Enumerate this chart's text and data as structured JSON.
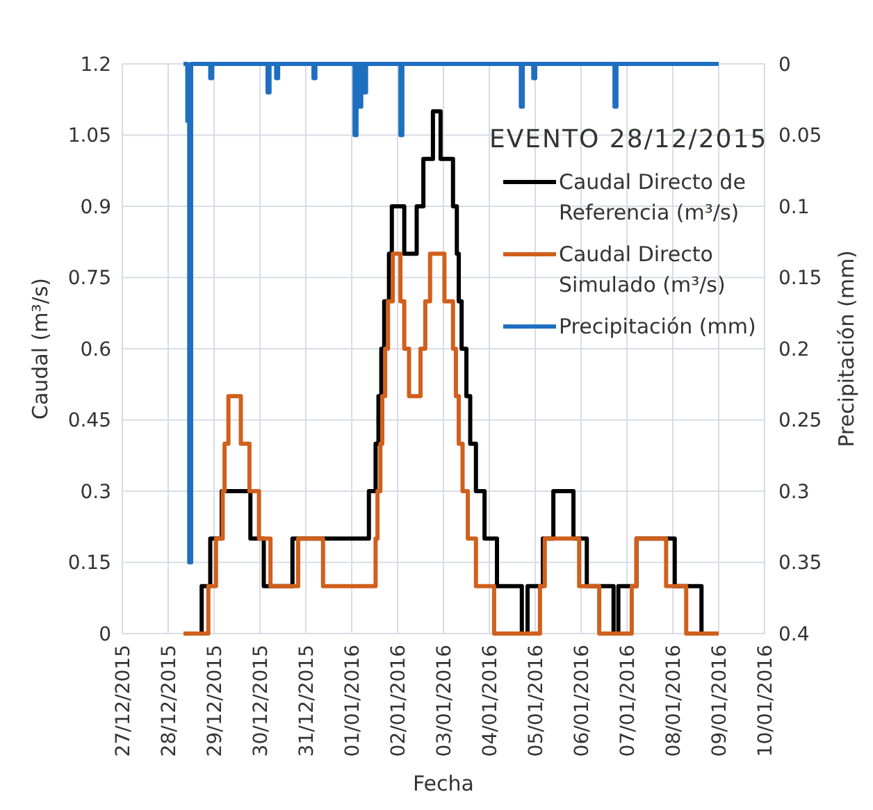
{
  "chart_data": {
    "type": "step",
    "xlabel": "Fecha",
    "ylabel": "Caudal (m³/s)",
    "y2label": "Precipitación (mm)",
    "legend_title": "EVENTO 28/12/2015",
    "legend": "top right",
    "grid": true,
    "xlim": [
      "2015-12-27",
      "2016-01-10"
    ],
    "xticks": [
      {
        "value": "2015-12-27",
        "label": "27/12/2015"
      },
      {
        "value": "2015-12-28",
        "label": "28/12/2015"
      },
      {
        "value": "2015-12-29",
        "label": "29/12/2015"
      },
      {
        "value": "2015-12-30",
        "label": "30/12/2015"
      },
      {
        "value": "2015-12-31",
        "label": "31/12/2015"
      },
      {
        "value": "2016-01-01",
        "label": "01/01/2016"
      },
      {
        "value": "2016-01-02",
        "label": "02/01/2016"
      },
      {
        "value": "2016-01-03",
        "label": "03/01/2016"
      },
      {
        "value": "2016-01-04",
        "label": "04/01/2016"
      },
      {
        "value": "2016-01-05",
        "label": "05/01/2016"
      },
      {
        "value": "2016-01-06",
        "label": "06/01/2016"
      },
      {
        "value": "2016-01-07",
        "label": "07/01/2016"
      },
      {
        "value": "2016-01-08",
        "label": "08/01/2016"
      },
      {
        "value": "2016-01-09",
        "label": "09/01/2016"
      },
      {
        "value": "2016-01-10",
        "label": "10/01/2016"
      }
    ],
    "ylim": [
      0,
      1.2
    ],
    "yticks": [
      0,
      0.15,
      0.3,
      0.45,
      0.6,
      0.75,
      0.9,
      1.05,
      1.2
    ],
    "y2lim": [
      0.4,
      0
    ],
    "y2ticks": [
      0,
      0.05,
      0.1,
      0.15,
      0.2,
      0.25,
      0.3,
      0.35,
      0.4
    ],
    "series": [
      {
        "name": "Caudal Directo de Referencia (m³/s)",
        "color": "#000000",
        "x": [
          "2015-12-28T08:00",
          "2015-12-28T17:30",
          "2015-12-28T22:00",
          "2015-12-29T04:00",
          "2015-12-29T19:00",
          "2015-12-30T02:00",
          "2015-12-30T17:00",
          "2016-01-01T09:00",
          "2016-01-01T12:30",
          "2016-01-01T14:00",
          "2016-01-01T15:30",
          "2016-01-01T17:00",
          "2016-01-01T19:30",
          "2016-01-01T21:00",
          "2016-01-02T03:30",
          "2016-01-02T10:00",
          "2016-01-02T13:30",
          "2016-01-02T18:30",
          "2016-01-02T22:30",
          "2016-01-03T05:00",
          "2016-01-03T07:00",
          "2016-01-03T08:00",
          "2016-01-03T09:30",
          "2016-01-03T12:00",
          "2016-01-03T14:00",
          "2016-01-03T17:00",
          "2016-01-03T21:30",
          "2016-01-04T04:00",
          "2016-01-04T17:00",
          "2016-01-04T20:00",
          "2016-01-05T04:00",
          "2016-01-05T09:30",
          "2016-01-05T20:00",
          "2016-01-06T03:00",
          "2016-01-06T17:00",
          "2016-01-06T19:30",
          "2016-01-07T05:00",
          "2016-01-08T01:00",
          "2016-01-08T15:00",
          "2016-01-09T00:00"
        ],
        "values": [
          0,
          0.1,
          0.2,
          0.3,
          0.2,
          0.1,
          0.2,
          0.3,
          0.4,
          0.5,
          0.6,
          0.7,
          0.8,
          0.9,
          0.8,
          0.9,
          1.0,
          1.1,
          1.0,
          0.9,
          0.8,
          0.7,
          0.6,
          0.5,
          0.4,
          0.3,
          0.2,
          0.1,
          0,
          0.1,
          0.2,
          0.3,
          0.2,
          0.1,
          0,
          0.1,
          0.2,
          0.1,
          0,
          0
        ]
      },
      {
        "name": "Caudal Directo Simulado (m³/s)",
        "color": "#d0601c",
        "x": [
          "2015-12-28T08:00",
          "2015-12-28T21:00",
          "2015-12-29T01:00",
          "2015-12-29T04:30",
          "2015-12-29T05:30",
          "2015-12-29T07:30",
          "2015-12-29T14:00",
          "2015-12-29T18:30",
          "2015-12-29T23:30",
          "2015-12-30T05:30",
          "2015-12-30T20:00",
          "2015-12-31T09:00",
          "2016-01-01T12:30",
          "2016-01-01T13:30",
          "2016-01-01T15:00",
          "2016-01-01T16:00",
          "2016-01-01T17:30",
          "2016-01-01T19:00",
          "2016-01-01T21:30",
          "2016-01-02T01:30",
          "2016-01-02T03:30",
          "2016-01-02T06:00",
          "2016-01-02T12:00",
          "2016-01-02T14:30",
          "2016-01-02T17:00",
          "2016-01-03T00:30",
          "2016-01-03T05:00",
          "2016-01-03T06:30",
          "2016-01-03T08:00",
          "2016-01-03T10:00",
          "2016-01-03T12:45",
          "2016-01-03T17:00",
          "2016-01-04T02:30",
          "2016-01-05T02:30",
          "2016-01-05T05:00",
          "2016-01-05T23:00",
          "2016-01-06T09:30",
          "2016-01-07T02:30",
          "2016-01-07T05:00",
          "2016-01-07T20:30",
          "2016-01-08T07:00",
          "2016-01-09T00:00"
        ],
        "values": [
          0,
          0.1,
          0.2,
          0.3,
          0.4,
          0.5,
          0.4,
          0.3,
          0.2,
          0.1,
          0.2,
          0.1,
          0.2,
          0.3,
          0.4,
          0.5,
          0.6,
          0.7,
          0.8,
          0.7,
          0.6,
          0.5,
          0.6,
          0.7,
          0.8,
          0.7,
          0.6,
          0.5,
          0.4,
          0.3,
          0.2,
          0.1,
          0,
          0.1,
          0.2,
          0.1,
          0,
          0.1,
          0.2,
          0.1,
          0,
          0
        ]
      },
      {
        "name": "Precipitación (mm)",
        "color": "#1f6fc0",
        "axis": "y2",
        "x": [
          "2015-12-28T08:00",
          "2015-12-28T10:00",
          "2015-12-28T11:00",
          "2015-12-28T12:00",
          "2015-12-28T22:00",
          "2015-12-28T23:00",
          "2015-12-30T04:00",
          "2015-12-30T05:00",
          "2015-12-30T08:30",
          "2015-12-30T09:30",
          "2015-12-31T04:00",
          "2015-12-31T05:00",
          "2016-01-01T01:30",
          "2016-01-01T02:30",
          "2016-01-01T04:00",
          "2016-01-01T05:00",
          "2016-01-01T06:30",
          "2016-01-01T07:30",
          "2016-01-02T01:30",
          "2016-01-02T02:30",
          "2016-01-04T16:30",
          "2016-01-04T17:30",
          "2016-01-04T23:00",
          "2016-01-05T00:00",
          "2016-01-06T17:30",
          "2016-01-06T18:30",
          "2016-01-09T00:00"
        ],
        "values": [
          0,
          0.04,
          0.35,
          0,
          0.01,
          0,
          0.02,
          0,
          0.01,
          0,
          0.01,
          0,
          0.05,
          0,
          0.03,
          0,
          0.02,
          0,
          0.05,
          0,
          0.03,
          0,
          0.01,
          0,
          0.03,
          0,
          0
        ]
      }
    ]
  }
}
